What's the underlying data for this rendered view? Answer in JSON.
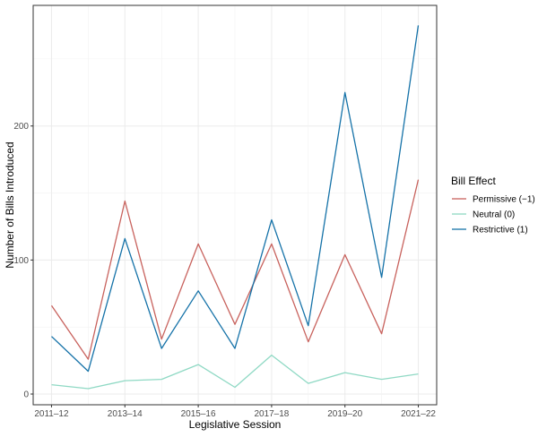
{
  "chart_data": {
    "type": "line",
    "xlabel": "Legislative Session",
    "ylabel": "Number of Bills Introduced",
    "x": [
      "2011–12",
      "2012–13",
      "2013–14",
      "2014–15",
      "2015–16",
      "2016–17",
      "2017–18",
      "2018–19",
      "2019–20",
      "2020–21",
      "2021–22"
    ],
    "x_tick_labels": [
      "2011–12",
      "2013–14",
      "2015–16",
      "2017–18",
      "2019–20",
      "2021–22"
    ],
    "ylim": [
      -8,
      290
    ],
    "y_ticks": [
      0,
      100,
      200
    ],
    "grid": true,
    "legend_title": "Bill Effect",
    "legend_position": "right",
    "series": [
      {
        "name": "Permissive (−1)",
        "color": "#c8625d",
        "values": [
          66,
          26,
          144,
          41,
          112,
          52,
          112,
          39,
          104,
          45,
          160
        ]
      },
      {
        "name": "Neutral (0)",
        "color": "#8fd9c4",
        "values": [
          7,
          4,
          10,
          11,
          22,
          5,
          29,
          8,
          16,
          11,
          15
        ]
      },
      {
        "name": "Restrictive (1)",
        "color": "#1572a8",
        "values": [
          43,
          17,
          116,
          34,
          77,
          34,
          130,
          51,
          225,
          87,
          275
        ]
      }
    ]
  }
}
